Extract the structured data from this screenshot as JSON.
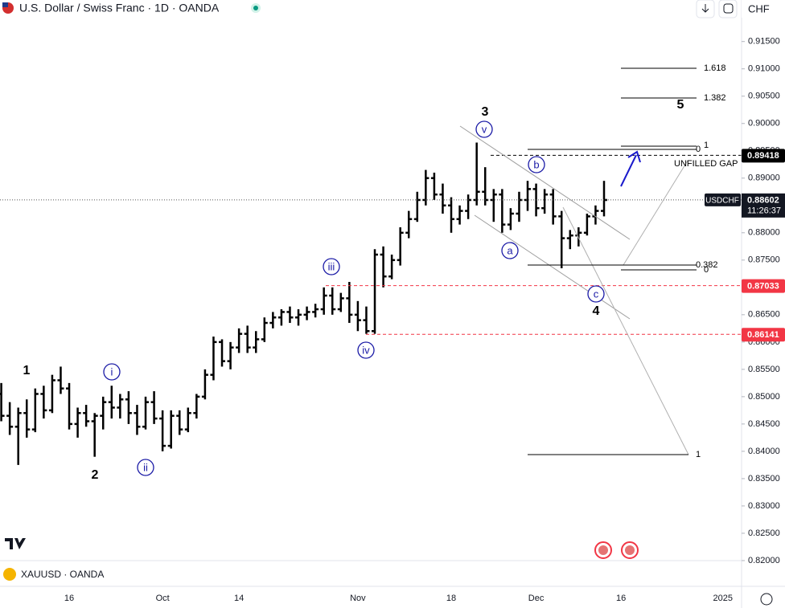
{
  "header": {
    "title": "U.S. Dollar / Swiss Franc · 1D · OANDA",
    "currency": "CHF"
  },
  "chart_data": {
    "type": "ohlc",
    "color": "#000000",
    "x": [
      -8,
      -7,
      -6,
      -5,
      -4,
      -3,
      -2,
      -1,
      0,
      1,
      2,
      3,
      4,
      5,
      6,
      7,
      8,
      9,
      10,
      11,
      12,
      13,
      14,
      15,
      16,
      17,
      18,
      19,
      20,
      21,
      22,
      23,
      24,
      25,
      26,
      27,
      28,
      29,
      30,
      31,
      32,
      33,
      34,
      35,
      36,
      37,
      38,
      39,
      40,
      41,
      42,
      43,
      44,
      45,
      46,
      47,
      48,
      49,
      50,
      51,
      52,
      53,
      54,
      55,
      56,
      57,
      58,
      59,
      60,
      61,
      62,
      63
    ],
    "open": [
      0.8505,
      0.8465,
      0.8445,
      0.847,
      0.844,
      0.8505,
      0.8475,
      0.853,
      0.8515,
      0.845,
      0.847,
      0.8455,
      0.8465,
      0.849,
      0.848,
      0.8495,
      0.847,
      0.8445,
      0.849,
      0.846,
      0.841,
      0.8465,
      0.844,
      0.847,
      0.85,
      0.854,
      0.86,
      0.8565,
      0.859,
      0.8615,
      0.859,
      0.8605,
      0.8635,
      0.8645,
      0.8655,
      0.8645,
      0.865,
      0.8655,
      0.866,
      0.8685,
      0.866,
      0.868,
      0.865,
      0.864,
      0.862,
      0.876,
      0.872,
      0.875,
      0.88,
      0.8825,
      0.886,
      0.89,
      0.887,
      0.885,
      0.8825,
      0.884,
      0.886,
      0.8875,
      0.886,
      0.887,
      0.8815,
      0.8835,
      0.886,
      0.888,
      0.8845,
      0.887,
      0.883,
      0.879,
      0.8795,
      0.88,
      0.883,
      0.884
    ],
    "high": [
      0.8525,
      0.849,
      0.848,
      0.8495,
      0.8515,
      0.852,
      0.854,
      0.8555,
      0.8525,
      0.848,
      0.8485,
      0.847,
      0.85,
      0.852,
      0.8505,
      0.851,
      0.8485,
      0.85,
      0.851,
      0.8475,
      0.8475,
      0.8475,
      0.848,
      0.8505,
      0.855,
      0.861,
      0.8605,
      0.86,
      0.8625,
      0.863,
      0.862,
      0.8645,
      0.8655,
      0.866,
      0.8665,
      0.866,
      0.8665,
      0.867,
      0.87,
      0.87,
      0.869,
      0.871,
      0.8675,
      0.8665,
      0.877,
      0.8775,
      0.876,
      0.881,
      0.884,
      0.8875,
      0.8915,
      0.891,
      0.889,
      0.8865,
      0.885,
      0.887,
      0.8965,
      0.892,
      0.888,
      0.888,
      0.8845,
      0.8875,
      0.8895,
      0.889,
      0.888,
      0.888,
      0.884,
      0.8805,
      0.881,
      0.8835,
      0.885,
      0.8895
    ],
    "low": [
      0.8455,
      0.843,
      0.8375,
      0.8425,
      0.8435,
      0.846,
      0.847,
      0.8505,
      0.844,
      0.8425,
      0.8445,
      0.839,
      0.844,
      0.846,
      0.846,
      0.845,
      0.843,
      0.844,
      0.845,
      0.84,
      0.8405,
      0.843,
      0.8435,
      0.846,
      0.8495,
      0.853,
      0.8555,
      0.855,
      0.858,
      0.858,
      0.858,
      0.86,
      0.8625,
      0.863,
      0.8635,
      0.863,
      0.864,
      0.8645,
      0.865,
      0.865,
      0.8655,
      0.8635,
      0.862,
      0.8615,
      0.8615,
      0.87,
      0.8715,
      0.874,
      0.879,
      0.882,
      0.885,
      0.886,
      0.8835,
      0.88,
      0.8815,
      0.8825,
      0.885,
      0.885,
      0.882,
      0.88,
      0.8805,
      0.882,
      0.884,
      0.883,
      0.8835,
      0.8815,
      0.8735,
      0.877,
      0.8775,
      0.8795,
      0.8815,
      0.883
    ],
    "close": [
      0.8465,
      0.8445,
      0.847,
      0.844,
      0.8505,
      0.8475,
      0.853,
      0.8515,
      0.845,
      0.847,
      0.8455,
      0.8465,
      0.849,
      0.848,
      0.8495,
      0.847,
      0.8445,
      0.849,
      0.846,
      0.841,
      0.8465,
      0.844,
      0.847,
      0.85,
      0.854,
      0.86,
      0.8565,
      0.859,
      0.8615,
      0.859,
      0.8605,
      0.8635,
      0.8645,
      0.8655,
      0.8645,
      0.865,
      0.8655,
      0.866,
      0.8685,
      0.866,
      0.868,
      0.865,
      0.864,
      0.862,
      0.876,
      0.872,
      0.875,
      0.88,
      0.8825,
      0.886,
      0.89,
      0.887,
      0.885,
      0.8825,
      0.884,
      0.886,
      0.8875,
      0.886,
      0.887,
      0.8815,
      0.8835,
      0.886,
      0.888,
      0.8845,
      0.887,
      0.883,
      0.879,
      0.8795,
      0.88,
      0.883,
      0.884,
      0.886
    ],
    "xlim": [
      -8.15,
      79.2
    ],
    "xticks": [
      {
        "value": 0,
        "label": "16"
      },
      {
        "value": 11,
        "label": "Oct"
      },
      {
        "value": 20,
        "label": "14"
      },
      {
        "value": 34,
        "label": "Nov"
      },
      {
        "value": 45,
        "label": "18"
      },
      {
        "value": 55,
        "label": "Dec"
      },
      {
        "value": 65,
        "label": "16"
      },
      {
        "value": 77,
        "label": "2025"
      }
    ],
    "ylim": [
      0.8197,
      0.9226
    ],
    "yticks": [
      {
        "value": 0.82,
        "label": "0.82000"
      },
      {
        "value": 0.825,
        "label": "0.82500"
      },
      {
        "value": 0.83,
        "label": "0.83000"
      },
      {
        "value": 0.835,
        "label": "0.83500"
      },
      {
        "value": 0.84,
        "label": "0.84000"
      },
      {
        "value": 0.845,
        "label": "0.84500"
      },
      {
        "value": 0.85,
        "label": "0.85000"
      },
      {
        "value": 0.855,
        "label": "0.85500"
      },
      {
        "value": 0.86,
        "label": "0.86000"
      },
      {
        "value": 0.865,
        "label": "0.86500"
      },
      {
        "value": 0.87,
        "label": "0.87000"
      },
      {
        "value": 0.875,
        "label": "0.87500"
      },
      {
        "value": 0.88,
        "label": "0.88000"
      },
      {
        "value": 0.885,
        "label": "0.88500"
      },
      {
        "value": 0.89,
        "label": "0.89000"
      },
      {
        "value": 0.895,
        "label": "0.89500"
      },
      {
        "value": 0.9,
        "label": "0.90000"
      },
      {
        "value": 0.905,
        "label": "0.90500"
      },
      {
        "value": 0.91,
        "label": "0.91000"
      },
      {
        "value": 0.915,
        "label": "0.91500"
      }
    ],
    "symbol": "USDCHF",
    "last_price": 0.88602,
    "countdown": "11:26:37",
    "price_lines": [
      {
        "value": 0.89418,
        "color": "#000000"
      },
      {
        "value": 0.87033,
        "color": "#f23645"
      },
      {
        "value": 0.86141,
        "color": "#f23645"
      }
    ],
    "waves": [
      "1",
      "2",
      "3",
      "4",
      "5"
    ],
    "circled_waves": [
      "i",
      "ii",
      "iii",
      "iv",
      "v",
      "a",
      "b",
      "c"
    ],
    "fib_labels": [
      "1.618",
      "1.382",
      "0",
      "1",
      "0.382",
      "0",
      "1"
    ],
    "note": "UNFILLED GAP"
  },
  "lower_pane": {
    "symbol": "XAUUSD · OANDA"
  }
}
